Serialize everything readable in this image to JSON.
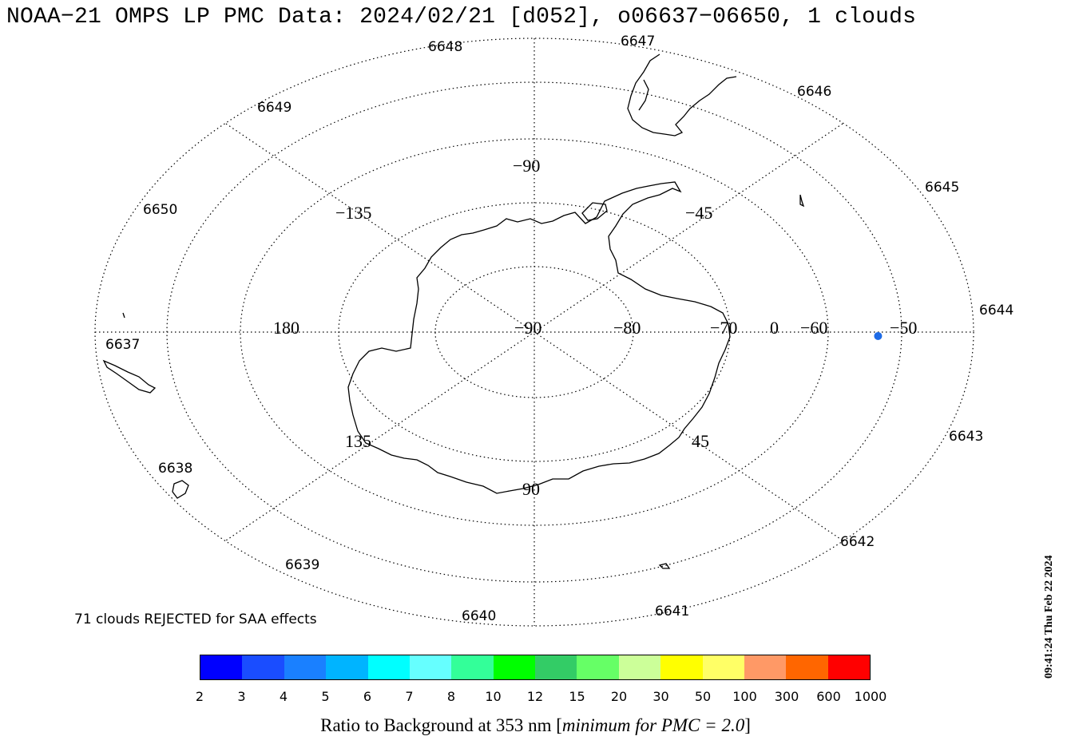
{
  "title": "NOAA−21 OMPS LP PMC Data: 2024/02/21 [d052], o06637−06650, 1 clouds",
  "map": {
    "projection": "south-polar-stereographic",
    "grid_line_style": "dotted",
    "latitude_labels": [
      "−90",
      "−80",
      "−70",
      "−60",
      "−50"
    ],
    "zero_label": "0",
    "longitude_labels": {
      "top": "−90",
      "upper_left": "−135",
      "upper_right": "−45",
      "left": "180",
      "lower_left": "135",
      "lower_right": "45",
      "bottom": "90"
    },
    "orbit_labels": [
      "6637",
      "6638",
      "6639",
      "6640",
      "6641",
      "6642",
      "6643",
      "6644",
      "6645",
      "6646",
      "6647",
      "6648",
      "6649",
      "6650"
    ],
    "clouds": [
      {
        "lat": -55,
        "lon": 1,
        "color": "#1e6be6"
      }
    ]
  },
  "rejected_note": "71 clouds REJECTED for SAA effects",
  "colorbar": {
    "colors": [
      "#0000ff",
      "#1a4dff",
      "#1a80ff",
      "#00b4ff",
      "#00ffff",
      "#66ffff",
      "#33ff99",
      "#00ff00",
      "#33cc66",
      "#66ff66",
      "#ccff99",
      "#ffff00",
      "#ffff66",
      "#ff9966",
      "#ff6600",
      "#ff0000"
    ],
    "ticks": [
      "2",
      "3",
      "4",
      "5",
      "6",
      "7",
      "8",
      "10",
      "12",
      "15",
      "20",
      "30",
      "50",
      "100",
      "300",
      "600",
      "1000"
    ],
    "label_main": "Ratio to Background at 353 nm [",
    "label_italic": "minimum for PMC = 2.0",
    "label_end": "]"
  },
  "timestamp": "09:41:24 Thu Feb 22 2024"
}
